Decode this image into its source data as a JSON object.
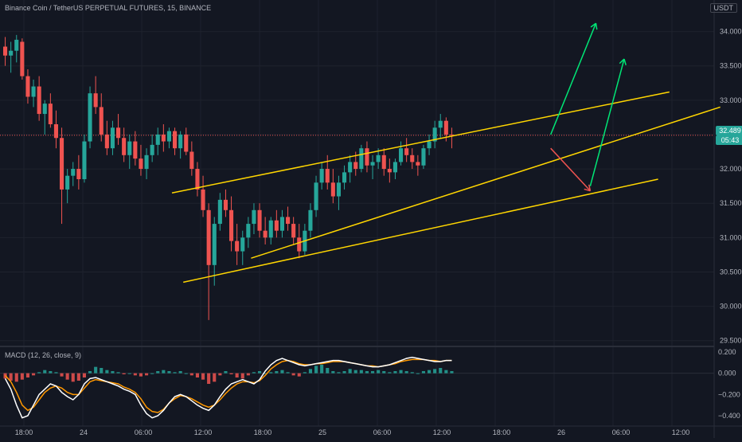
{
  "header": {
    "symbol_line": "Binance Coin / TetherUS PERPETUAL FUTURES, 15, BINANCE",
    "currency": "USDT"
  },
  "price_axis": {
    "ticks": [
      "34.000",
      "33.500",
      "33.000",
      "32.500",
      "32.000",
      "31.500",
      "31.000",
      "30.500",
      "30.000",
      "29.500"
    ],
    "current_price": "32.489",
    "countdown": "05:43"
  },
  "time_axis": {
    "ticks": [
      "18:00",
      "24",
      "06:00",
      "12:00",
      "18:00",
      "25",
      "06:00",
      "12:00",
      "18:00",
      "26",
      "06:00",
      "12:00"
    ]
  },
  "macd": {
    "label": "MACD (12, 26, close, 9)",
    "ticks": [
      "0.200",
      "0.000",
      "−0.200",
      "−0.400"
    ]
  },
  "colors": {
    "up": "#26a69a",
    "down": "#ef5350",
    "channel": "#ffd600",
    "bull_arrow": "#00e676",
    "bear_arrow": "#ef5350",
    "macd_line": "#ffffff",
    "signal_line": "#ff9800"
  },
  "chart_data": {
    "type": "candlestick",
    "price_range": [
      29.45,
      34.25
    ],
    "candles": [
      {
        "t": 0,
        "o": 33.78,
        "h": 33.92,
        "l": 33.5,
        "c": 33.65
      },
      {
        "t": 1,
        "o": 33.65,
        "h": 33.85,
        "l": 33.4,
        "c": 33.72
      },
      {
        "t": 2,
        "o": 33.72,
        "h": 33.95,
        "l": 33.55,
        "c": 33.88
      },
      {
        "t": 3,
        "o": 33.85,
        "h": 33.9,
        "l": 33.3,
        "c": 33.35
      },
      {
        "t": 4,
        "o": 33.35,
        "h": 33.45,
        "l": 32.95,
        "c": 33.05
      },
      {
        "t": 5,
        "o": 33.05,
        "h": 33.3,
        "l": 32.9,
        "c": 33.2
      },
      {
        "t": 6,
        "o": 33.2,
        "h": 33.35,
        "l": 32.7,
        "c": 32.8
      },
      {
        "t": 7,
        "o": 32.8,
        "h": 33.0,
        "l": 32.5,
        "c": 32.95
      },
      {
        "t": 8,
        "o": 32.95,
        "h": 33.1,
        "l": 32.6,
        "c": 32.65
      },
      {
        "t": 9,
        "o": 32.65,
        "h": 32.85,
        "l": 32.3,
        "c": 32.45
      },
      {
        "t": 10,
        "o": 32.45,
        "h": 32.6,
        "l": 31.2,
        "c": 31.7
      },
      {
        "t": 11,
        "o": 31.7,
        "h": 32.0,
        "l": 31.5,
        "c": 31.9
      },
      {
        "t": 12,
        "o": 31.9,
        "h": 32.1,
        "l": 31.75,
        "c": 32.0
      },
      {
        "t": 13,
        "o": 32.0,
        "h": 32.2,
        "l": 31.7,
        "c": 31.85
      },
      {
        "t": 14,
        "o": 31.85,
        "h": 32.5,
        "l": 31.8,
        "c": 32.4
      },
      {
        "t": 15,
        "o": 32.4,
        "h": 33.2,
        "l": 32.3,
        "c": 33.1
      },
      {
        "t": 16,
        "o": 33.1,
        "h": 33.35,
        "l": 32.8,
        "c": 32.9
      },
      {
        "t": 17,
        "o": 32.9,
        "h": 33.1,
        "l": 32.4,
        "c": 32.5
      },
      {
        "t": 18,
        "o": 32.5,
        "h": 32.7,
        "l": 32.2,
        "c": 32.3
      },
      {
        "t": 19,
        "o": 32.3,
        "h": 32.7,
        "l": 32.2,
        "c": 32.6
      },
      {
        "t": 20,
        "o": 32.6,
        "h": 32.8,
        "l": 32.35,
        "c": 32.45
      },
      {
        "t": 21,
        "o": 32.45,
        "h": 32.6,
        "l": 32.1,
        "c": 32.2
      },
      {
        "t": 22,
        "o": 32.2,
        "h": 32.5,
        "l": 32.0,
        "c": 32.4
      },
      {
        "t": 23,
        "o": 32.4,
        "h": 32.55,
        "l": 32.05,
        "c": 32.15
      },
      {
        "t": 24,
        "o": 32.15,
        "h": 32.35,
        "l": 31.9,
        "c": 32.0
      },
      {
        "t": 25,
        "o": 32.0,
        "h": 32.3,
        "l": 31.85,
        "c": 32.2
      },
      {
        "t": 26,
        "o": 32.2,
        "h": 32.5,
        "l": 32.1,
        "c": 32.35
      },
      {
        "t": 27,
        "o": 32.35,
        "h": 32.6,
        "l": 32.2,
        "c": 32.5
      },
      {
        "t": 28,
        "o": 32.5,
        "h": 32.65,
        "l": 32.25,
        "c": 32.4
      },
      {
        "t": 29,
        "o": 32.4,
        "h": 32.6,
        "l": 32.3,
        "c": 32.55
      },
      {
        "t": 30,
        "o": 32.55,
        "h": 32.6,
        "l": 32.2,
        "c": 32.3
      },
      {
        "t": 31,
        "o": 32.3,
        "h": 32.55,
        "l": 32.15,
        "c": 32.5
      },
      {
        "t": 32,
        "o": 32.5,
        "h": 32.6,
        "l": 32.2,
        "c": 32.25
      },
      {
        "t": 33,
        "o": 32.25,
        "h": 32.4,
        "l": 31.9,
        "c": 32.0
      },
      {
        "t": 34,
        "o": 32.0,
        "h": 32.1,
        "l": 31.6,
        "c": 31.7
      },
      {
        "t": 35,
        "o": 31.7,
        "h": 31.9,
        "l": 31.3,
        "c": 31.4
      },
      {
        "t": 36,
        "o": 31.4,
        "h": 31.5,
        "l": 29.8,
        "c": 30.6
      },
      {
        "t": 37,
        "o": 30.6,
        "h": 31.3,
        "l": 30.3,
        "c": 31.2
      },
      {
        "t": 38,
        "o": 31.2,
        "h": 31.65,
        "l": 31.1,
        "c": 31.55
      },
      {
        "t": 39,
        "o": 31.55,
        "h": 31.7,
        "l": 31.3,
        "c": 31.4
      },
      {
        "t": 40,
        "o": 31.4,
        "h": 31.6,
        "l": 30.8,
        "c": 30.95
      },
      {
        "t": 41,
        "o": 30.95,
        "h": 31.2,
        "l": 30.6,
        "c": 30.8
      },
      {
        "t": 42,
        "o": 30.8,
        "h": 31.1,
        "l": 30.6,
        "c": 31.0
      },
      {
        "t": 43,
        "o": 31.0,
        "h": 31.3,
        "l": 30.85,
        "c": 31.2
      },
      {
        "t": 44,
        "o": 31.2,
        "h": 31.5,
        "l": 31.05,
        "c": 31.4
      },
      {
        "t": 45,
        "o": 31.4,
        "h": 31.5,
        "l": 31.0,
        "c": 31.1
      },
      {
        "t": 46,
        "o": 31.1,
        "h": 31.3,
        "l": 30.9,
        "c": 31.0
      },
      {
        "t": 47,
        "o": 31.0,
        "h": 31.3,
        "l": 30.9,
        "c": 31.25
      },
      {
        "t": 48,
        "o": 31.25,
        "h": 31.4,
        "l": 31.0,
        "c": 31.1
      },
      {
        "t": 49,
        "o": 31.1,
        "h": 31.4,
        "l": 31.0,
        "c": 31.3
      },
      {
        "t": 50,
        "o": 31.3,
        "h": 31.45,
        "l": 31.1,
        "c": 31.2
      },
      {
        "t": 51,
        "o": 31.2,
        "h": 31.3,
        "l": 30.9,
        "c": 31.0
      },
      {
        "t": 52,
        "o": 31.0,
        "h": 31.2,
        "l": 30.7,
        "c": 30.8
      },
      {
        "t": 53,
        "o": 30.8,
        "h": 31.2,
        "l": 30.75,
        "c": 31.1
      },
      {
        "t": 54,
        "o": 31.1,
        "h": 31.5,
        "l": 31.0,
        "c": 31.4
      },
      {
        "t": 55,
        "o": 31.4,
        "h": 31.9,
        "l": 31.3,
        "c": 31.8
      },
      {
        "t": 56,
        "o": 31.8,
        "h": 32.1,
        "l": 31.7,
        "c": 32.0
      },
      {
        "t": 57,
        "o": 32.0,
        "h": 32.2,
        "l": 31.7,
        "c": 31.8
      },
      {
        "t": 58,
        "o": 31.8,
        "h": 32.0,
        "l": 31.5,
        "c": 31.6
      },
      {
        "t": 59,
        "o": 31.6,
        "h": 31.9,
        "l": 31.4,
        "c": 31.8
      },
      {
        "t": 60,
        "o": 31.8,
        "h": 32.05,
        "l": 31.7,
        "c": 31.95
      },
      {
        "t": 61,
        "o": 31.95,
        "h": 32.2,
        "l": 31.8,
        "c": 32.1
      },
      {
        "t": 62,
        "o": 32.1,
        "h": 32.25,
        "l": 31.9,
        "c": 32.0
      },
      {
        "t": 63,
        "o": 32.0,
        "h": 32.35,
        "l": 31.95,
        "c": 32.3
      },
      {
        "t": 64,
        "o": 32.3,
        "h": 32.4,
        "l": 31.95,
        "c": 32.05
      },
      {
        "t": 65,
        "o": 32.05,
        "h": 32.2,
        "l": 31.85,
        "c": 32.1
      },
      {
        "t": 66,
        "o": 32.1,
        "h": 32.3,
        "l": 32.0,
        "c": 32.2
      },
      {
        "t": 67,
        "o": 32.2,
        "h": 32.3,
        "l": 31.9,
        "c": 32.0
      },
      {
        "t": 68,
        "o": 32.0,
        "h": 32.15,
        "l": 31.8,
        "c": 31.95
      },
      {
        "t": 69,
        "o": 31.95,
        "h": 32.15,
        "l": 31.85,
        "c": 32.1
      },
      {
        "t": 70,
        "o": 32.1,
        "h": 32.4,
        "l": 32.05,
        "c": 32.3
      },
      {
        "t": 71,
        "o": 32.3,
        "h": 32.45,
        "l": 32.1,
        "c": 32.2
      },
      {
        "t": 72,
        "o": 32.2,
        "h": 32.3,
        "l": 32.0,
        "c": 32.1
      },
      {
        "t": 73,
        "o": 32.1,
        "h": 32.2,
        "l": 31.9,
        "c": 32.05
      },
      {
        "t": 74,
        "o": 32.05,
        "h": 32.35,
        "l": 32.0,
        "c": 32.3
      },
      {
        "t": 75,
        "o": 32.3,
        "h": 32.5,
        "l": 32.2,
        "c": 32.4
      },
      {
        "t": 76,
        "o": 32.4,
        "h": 32.7,
        "l": 32.3,
        "c": 32.6
      },
      {
        "t": 77,
        "o": 32.6,
        "h": 32.8,
        "l": 32.45,
        "c": 32.7
      },
      {
        "t": 78,
        "o": 32.7,
        "h": 32.75,
        "l": 32.4,
        "c": 32.5
      },
      {
        "t": 79,
        "o": 32.5,
        "h": 32.6,
        "l": 32.3,
        "c": 32.49
      }
    ],
    "macd": {
      "zero_range": [
        -0.46,
        0.23
      ],
      "histogram": [
        -0.05,
        -0.07,
        -0.08,
        -0.06,
        -0.04,
        -0.02,
        0.01,
        0.03,
        0.02,
        0.01,
        -0.03,
        -0.06,
        -0.08,
        -0.07,
        -0.04,
        0.02,
        0.06,
        0.05,
        0.03,
        0.02,
        0.01,
        -0.01,
        0.0,
        -0.02,
        -0.03,
        -0.02,
        0.0,
        0.02,
        0.03,
        0.02,
        0.01,
        0.02,
        0.0,
        -0.02,
        -0.04,
        -0.06,
        -0.1,
        -0.08,
        -0.02,
        0.02,
        -0.01,
        -0.04,
        -0.05,
        -0.02,
        0.01,
        0.02,
        0.0,
        0.01,
        0.02,
        0.03,
        0.01,
        -0.02,
        -0.03,
        0.01,
        0.04,
        0.07,
        0.08,
        0.05,
        0.02,
        0.01,
        0.02,
        0.04,
        0.03,
        0.03,
        0.02,
        0.02,
        0.03,
        0.02,
        0.01,
        0.02,
        0.03,
        0.02,
        0.01,
        0.0,
        0.02,
        0.03,
        0.04,
        0.05,
        0.03,
        0.02
      ],
      "macd_line": [
        -0.05,
        -0.15,
        -0.3,
        -0.42,
        -0.4,
        -0.3,
        -0.2,
        -0.15,
        -0.1,
        -0.12,
        -0.18,
        -0.22,
        -0.25,
        -0.2,
        -0.1,
        -0.05,
        -0.04,
        -0.06,
        -0.08,
        -0.1,
        -0.12,
        -0.15,
        -0.17,
        -0.2,
        -0.3,
        -0.38,
        -0.42,
        -0.4,
        -0.35,
        -0.28,
        -0.22,
        -0.2,
        -0.22,
        -0.26,
        -0.3,
        -0.33,
        -0.35,
        -0.3,
        -0.22,
        -0.15,
        -0.1,
        -0.08,
        -0.06,
        -0.08,
        -0.1,
        -0.06,
        0.02,
        0.08,
        0.12,
        0.14,
        0.12,
        0.1,
        0.08,
        0.07,
        0.08,
        0.09,
        0.1,
        0.11,
        0.12,
        0.12,
        0.11,
        0.1,
        0.09,
        0.08,
        0.07,
        0.06,
        0.06,
        0.07,
        0.08,
        0.1,
        0.12,
        0.14,
        0.15,
        0.14,
        0.13,
        0.12,
        0.11,
        0.11,
        0.12,
        0.12
      ],
      "signal_line": [
        -0.02,
        -0.08,
        -0.18,
        -0.3,
        -0.35,
        -0.32,
        -0.25,
        -0.18,
        -0.14,
        -0.12,
        -0.14,
        -0.18,
        -0.2,
        -0.2,
        -0.14,
        -0.08,
        -0.06,
        -0.07,
        -0.08,
        -0.09,
        -0.1,
        -0.13,
        -0.15,
        -0.18,
        -0.24,
        -0.32,
        -0.36,
        -0.37,
        -0.34,
        -0.28,
        -0.24,
        -0.21,
        -0.22,
        -0.24,
        -0.27,
        -0.3,
        -0.32,
        -0.3,
        -0.25,
        -0.19,
        -0.14,
        -0.1,
        -0.08,
        -0.08,
        -0.09,
        -0.07,
        -0.02,
        0.04,
        0.08,
        0.11,
        0.12,
        0.11,
        0.09,
        0.08,
        0.08,
        0.09,
        0.09,
        0.1,
        0.11,
        0.11,
        0.11,
        0.1,
        0.09,
        0.08,
        0.07,
        0.07,
        0.06,
        0.07,
        0.08,
        0.09,
        0.11,
        0.12,
        0.13,
        0.13,
        0.13,
        0.12,
        0.12,
        0.11,
        0.12,
        0.12
      ]
    },
    "drawings": {
      "upper_channel": [
        [
          30,
          31.65
        ],
        [
          118,
          33.12
        ]
      ],
      "lower_channel": [
        [
          32,
          30.35
        ],
        [
          116,
          31.85
        ]
      ],
      "inner_channel": [
        [
          44,
          30.7
        ],
        [
          127,
          32.9
        ]
      ],
      "bear_arrow": [
        [
          97,
          32.3
        ],
        [
          104,
          31.68
        ]
      ],
      "bull_arrow_1": [
        [
          97,
          32.5
        ],
        [
          105,
          34.12
        ]
      ],
      "bull_arrow_2": [
        [
          104,
          31.75
        ],
        [
          110,
          33.6
        ]
      ]
    }
  }
}
